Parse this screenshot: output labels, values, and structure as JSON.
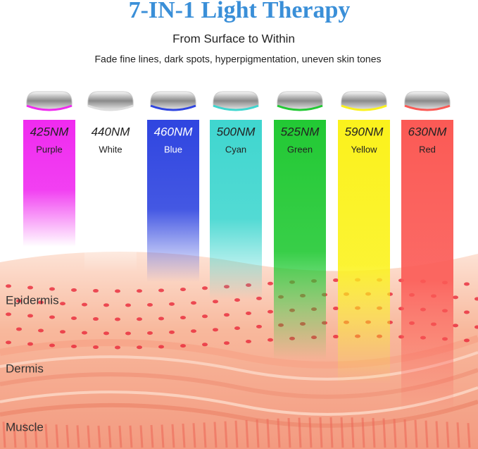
{
  "header": {
    "title": "7-IN-1 Light Therapy",
    "subtitle": "From Surface to Within",
    "tagline": "Fade fine lines, dark spots, hyperpigmentation, uneven skin tones"
  },
  "lights": [
    {
      "wavelength": "425NM",
      "name": "Purple",
      "color": "#f02af0"
    },
    {
      "wavelength": "440NM",
      "name": "White",
      "color": "#ffffff"
    },
    {
      "wavelength": "460NM",
      "name": "Blue",
      "color": "#2f45e0"
    },
    {
      "wavelength": "500NM",
      "name": "Cyan",
      "color": "#3fd6cf"
    },
    {
      "wavelength": "525NM",
      "name": "Green",
      "color": "#22c934"
    },
    {
      "wavelength": "590NM",
      "name": "Yellow",
      "color": "#fbf21c"
    },
    {
      "wavelength": "630NM",
      "name": "Red",
      "color": "#fb5a55"
    }
  ],
  "layers": [
    "Epidermis",
    "Dermis",
    "Muscle"
  ]
}
